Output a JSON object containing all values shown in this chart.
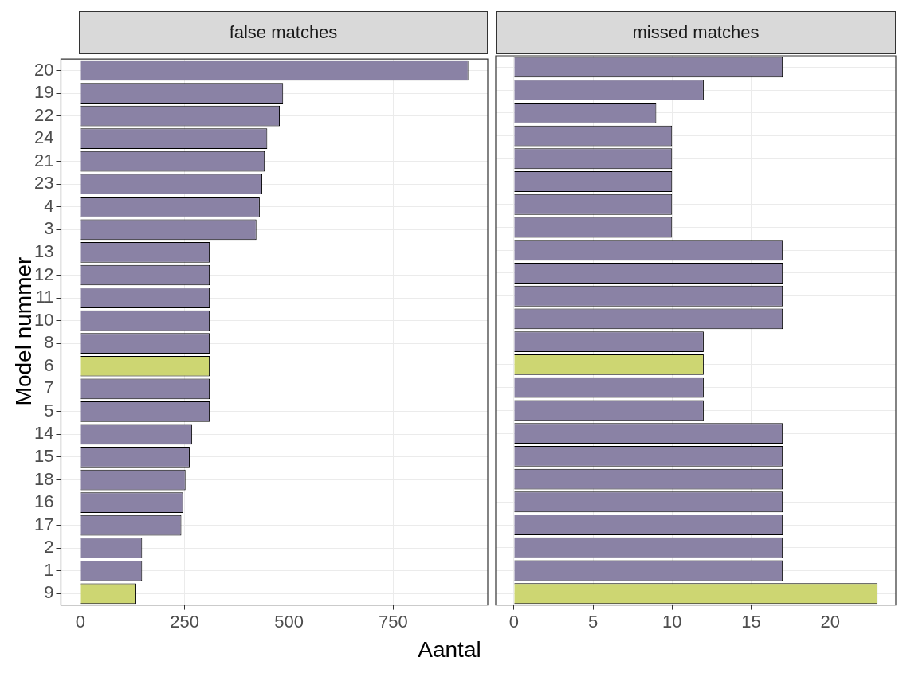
{
  "chart_data": [
    {
      "type": "bar",
      "orientation": "horizontal",
      "title": "false matches",
      "xlabel": "Aantal",
      "ylabel": "Model nummer",
      "categories": [
        "20",
        "19",
        "22",
        "24",
        "21",
        "23",
        "4",
        "3",
        "13",
        "12",
        "11",
        "10",
        "8",
        "6",
        "7",
        "5",
        "14",
        "15",
        "18",
        "16",
        "17",
        "2",
        "1",
        "9"
      ],
      "values": [
        930,
        486,
        478,
        448,
        442,
        436,
        430,
        422,
        310,
        310,
        310,
        310,
        310,
        310,
        310,
        310,
        268,
        262,
        252,
        246,
        242,
        148,
        148,
        134
      ],
      "colors": [
        "#8a82a5",
        "#8a82a5",
        "#8a82a5",
        "#8a82a5",
        "#8a82a5",
        "#8a82a5",
        "#8a82a5",
        "#8a82a5",
        "#8a82a5",
        "#8a82a5",
        "#8a82a5",
        "#8a82a5",
        "#8a82a5",
        "#cdd672",
        "#8a82a5",
        "#8a82a5",
        "#8a82a5",
        "#8a82a5",
        "#8a82a5",
        "#8a82a5",
        "#8a82a5",
        "#8a82a5",
        "#8a82a5",
        "#cdd672"
      ],
      "xlim": [
        -46.5,
        976.5
      ],
      "xticks": [
        0,
        250,
        500,
        750
      ],
      "grid": true,
      "legend": false
    },
    {
      "type": "bar",
      "orientation": "horizontal",
      "title": "missed matches",
      "categories": [
        "20",
        "19",
        "22",
        "24",
        "21",
        "23",
        "4",
        "3",
        "13",
        "12",
        "11",
        "10",
        "8",
        "6",
        "7",
        "5",
        "14",
        "15",
        "18",
        "16",
        "17",
        "2",
        "1",
        "9"
      ],
      "values": [
        17,
        12,
        9,
        10,
        10,
        10,
        10,
        10,
        17,
        17,
        17,
        17,
        12,
        12,
        12,
        12,
        17,
        17,
        17,
        17,
        17,
        17,
        17,
        23
      ],
      "colors": [
        "#8a82a5",
        "#8a82a5",
        "#8a82a5",
        "#8a82a5",
        "#8a82a5",
        "#8a82a5",
        "#8a82a5",
        "#8a82a5",
        "#8a82a5",
        "#8a82a5",
        "#8a82a5",
        "#8a82a5",
        "#8a82a5",
        "#cdd672",
        "#8a82a5",
        "#8a82a5",
        "#8a82a5",
        "#8a82a5",
        "#8a82a5",
        "#8a82a5",
        "#8a82a5",
        "#8a82a5",
        "#8a82a5",
        "#cdd672"
      ],
      "xlim": [
        -1.15,
        24.15
      ],
      "xticks": [
        0,
        5,
        10,
        15,
        20
      ],
      "grid": true,
      "legend": false,
      "tick_labels": "x"
    }
  ]
}
